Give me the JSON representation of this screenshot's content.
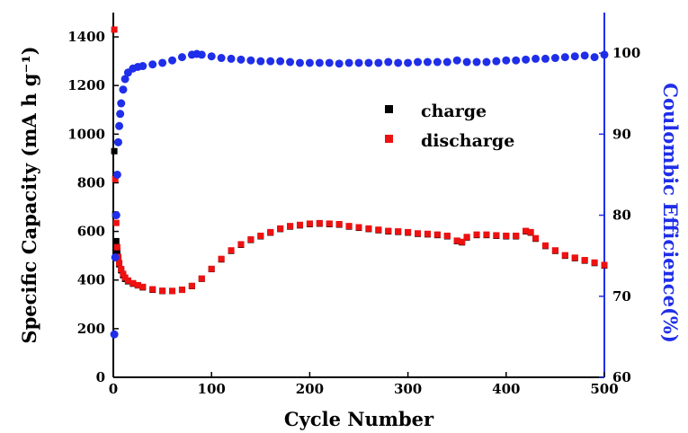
{
  "chart_data": {
    "type": "scatter",
    "xlabel": "Cycle Number",
    "ylabel_left": "Specific Capacity (mA h g⁻¹)",
    "ylabel_right": "Coulombic Efficience(%)",
    "xlim": [
      0,
      500
    ],
    "ylim_left": [
      0,
      1500
    ],
    "ylim_right": [
      60,
      105
    ],
    "x_ticks": [
      "0",
      "100",
      "200",
      "300",
      "400",
      "500"
    ],
    "y_ticks_left": [
      "0",
      "200",
      "400",
      "600",
      "800",
      "1000",
      "1200",
      "1400"
    ],
    "y_ticks_right": [
      "60",
      "70",
      "80",
      "90",
      "100"
    ],
    "grid": false,
    "legend_position": "center-right",
    "colors": {
      "charge": "#000000",
      "discharge": "#ee1111",
      "efficiency": "#1f2ee8",
      "right_axis": "#1f2ee8"
    },
    "series": [
      {
        "name": "charge",
        "axis": "left",
        "x": [
          1,
          2,
          3,
          4,
          5,
          6,
          8,
          10,
          12,
          15,
          20,
          25,
          30,
          40,
          50,
          60,
          70,
          80,
          90,
          100,
          110,
          120,
          130,
          140,
          150,
          160,
          170,
          180,
          190,
          200,
          210,
          220,
          230,
          240,
          250,
          260,
          270,
          280,
          290,
          300,
          310,
          320,
          330,
          340,
          350,
          355,
          360,
          370,
          380,
          390,
          400,
          410,
          420,
          425,
          430,
          440,
          450,
          460,
          470,
          480,
          490,
          500
        ],
        "y": [
          930,
          670,
          560,
          520,
          490,
          465,
          440,
          420,
          405,
          395,
          385,
          378,
          370,
          360,
          355,
          355,
          360,
          375,
          405,
          445,
          485,
          520,
          545,
          565,
          580,
          595,
          610,
          620,
          625,
          630,
          632,
          630,
          628,
          620,
          615,
          610,
          605,
          600,
          598,
          595,
          590,
          588,
          585,
          580,
          560,
          555,
          575,
          585,
          585,
          582,
          580,
          580,
          600,
          595,
          570,
          540,
          520,
          500,
          490,
          480,
          470,
          460
        ]
      },
      {
        "name": "discharge",
        "axis": "left",
        "x": [
          1,
          2,
          3,
          4,
          5,
          6,
          8,
          10,
          12,
          15,
          20,
          25,
          30,
          40,
          50,
          60,
          70,
          80,
          90,
          100,
          110,
          120,
          130,
          140,
          150,
          160,
          170,
          180,
          190,
          200,
          210,
          220,
          230,
          240,
          250,
          260,
          270,
          280,
          290,
          300,
          310,
          320,
          330,
          340,
          350,
          355,
          360,
          370,
          380,
          390,
          400,
          410,
          420,
          425,
          430,
          440,
          450,
          460,
          470,
          480,
          490,
          500
        ],
        "y": [
          1430,
          815,
          635,
          535,
          495,
          470,
          445,
          425,
          410,
          398,
          387,
          379,
          372,
          362,
          356,
          355,
          360,
          376,
          406,
          446,
          487,
          522,
          547,
          567,
          582,
          597,
          612,
          622,
          627,
          632,
          634,
          632,
          630,
          622,
          617,
          612,
          607,
          602,
          600,
          597,
          592,
          590,
          587,
          582,
          562,
          557,
          577,
          587,
          587,
          584,
          582,
          582,
          602,
          597,
          572,
          542,
          522,
          502,
          492,
          482,
          472,
          462
        ]
      },
      {
        "name": "",
        "axis": "right",
        "x": [
          1,
          2,
          3,
          4,
          5,
          6,
          7,
          8,
          10,
          12,
          15,
          20,
          25,
          30,
          40,
          50,
          60,
          70,
          80,
          85,
          90,
          100,
          110,
          120,
          130,
          140,
          150,
          160,
          170,
          180,
          190,
          200,
          210,
          220,
          230,
          240,
          250,
          260,
          270,
          280,
          290,
          300,
          310,
          320,
          330,
          340,
          350,
          360,
          370,
          380,
          390,
          400,
          410,
          420,
          430,
          440,
          450,
          460,
          470,
          480,
          490,
          500
        ],
        "y": [
          65.3,
          74.8,
          80.0,
          85.0,
          89.0,
          91.0,
          92.5,
          93.8,
          95.5,
          96.8,
          97.6,
          98.1,
          98.3,
          98.4,
          98.6,
          98.8,
          99.1,
          99.5,
          99.8,
          99.9,
          99.8,
          99.6,
          99.4,
          99.3,
          99.2,
          99.1,
          99.0,
          99.0,
          99.0,
          98.9,
          98.8,
          98.8,
          98.8,
          98.8,
          98.7,
          98.8,
          98.8,
          98.8,
          98.8,
          98.9,
          98.8,
          98.8,
          98.9,
          98.9,
          98.9,
          98.9,
          99.1,
          98.9,
          98.9,
          98.9,
          99.0,
          99.1,
          99.1,
          99.2,
          99.3,
          99.3,
          99.4,
          99.5,
          99.6,
          99.7,
          99.5,
          99.8
        ]
      }
    ]
  }
}
